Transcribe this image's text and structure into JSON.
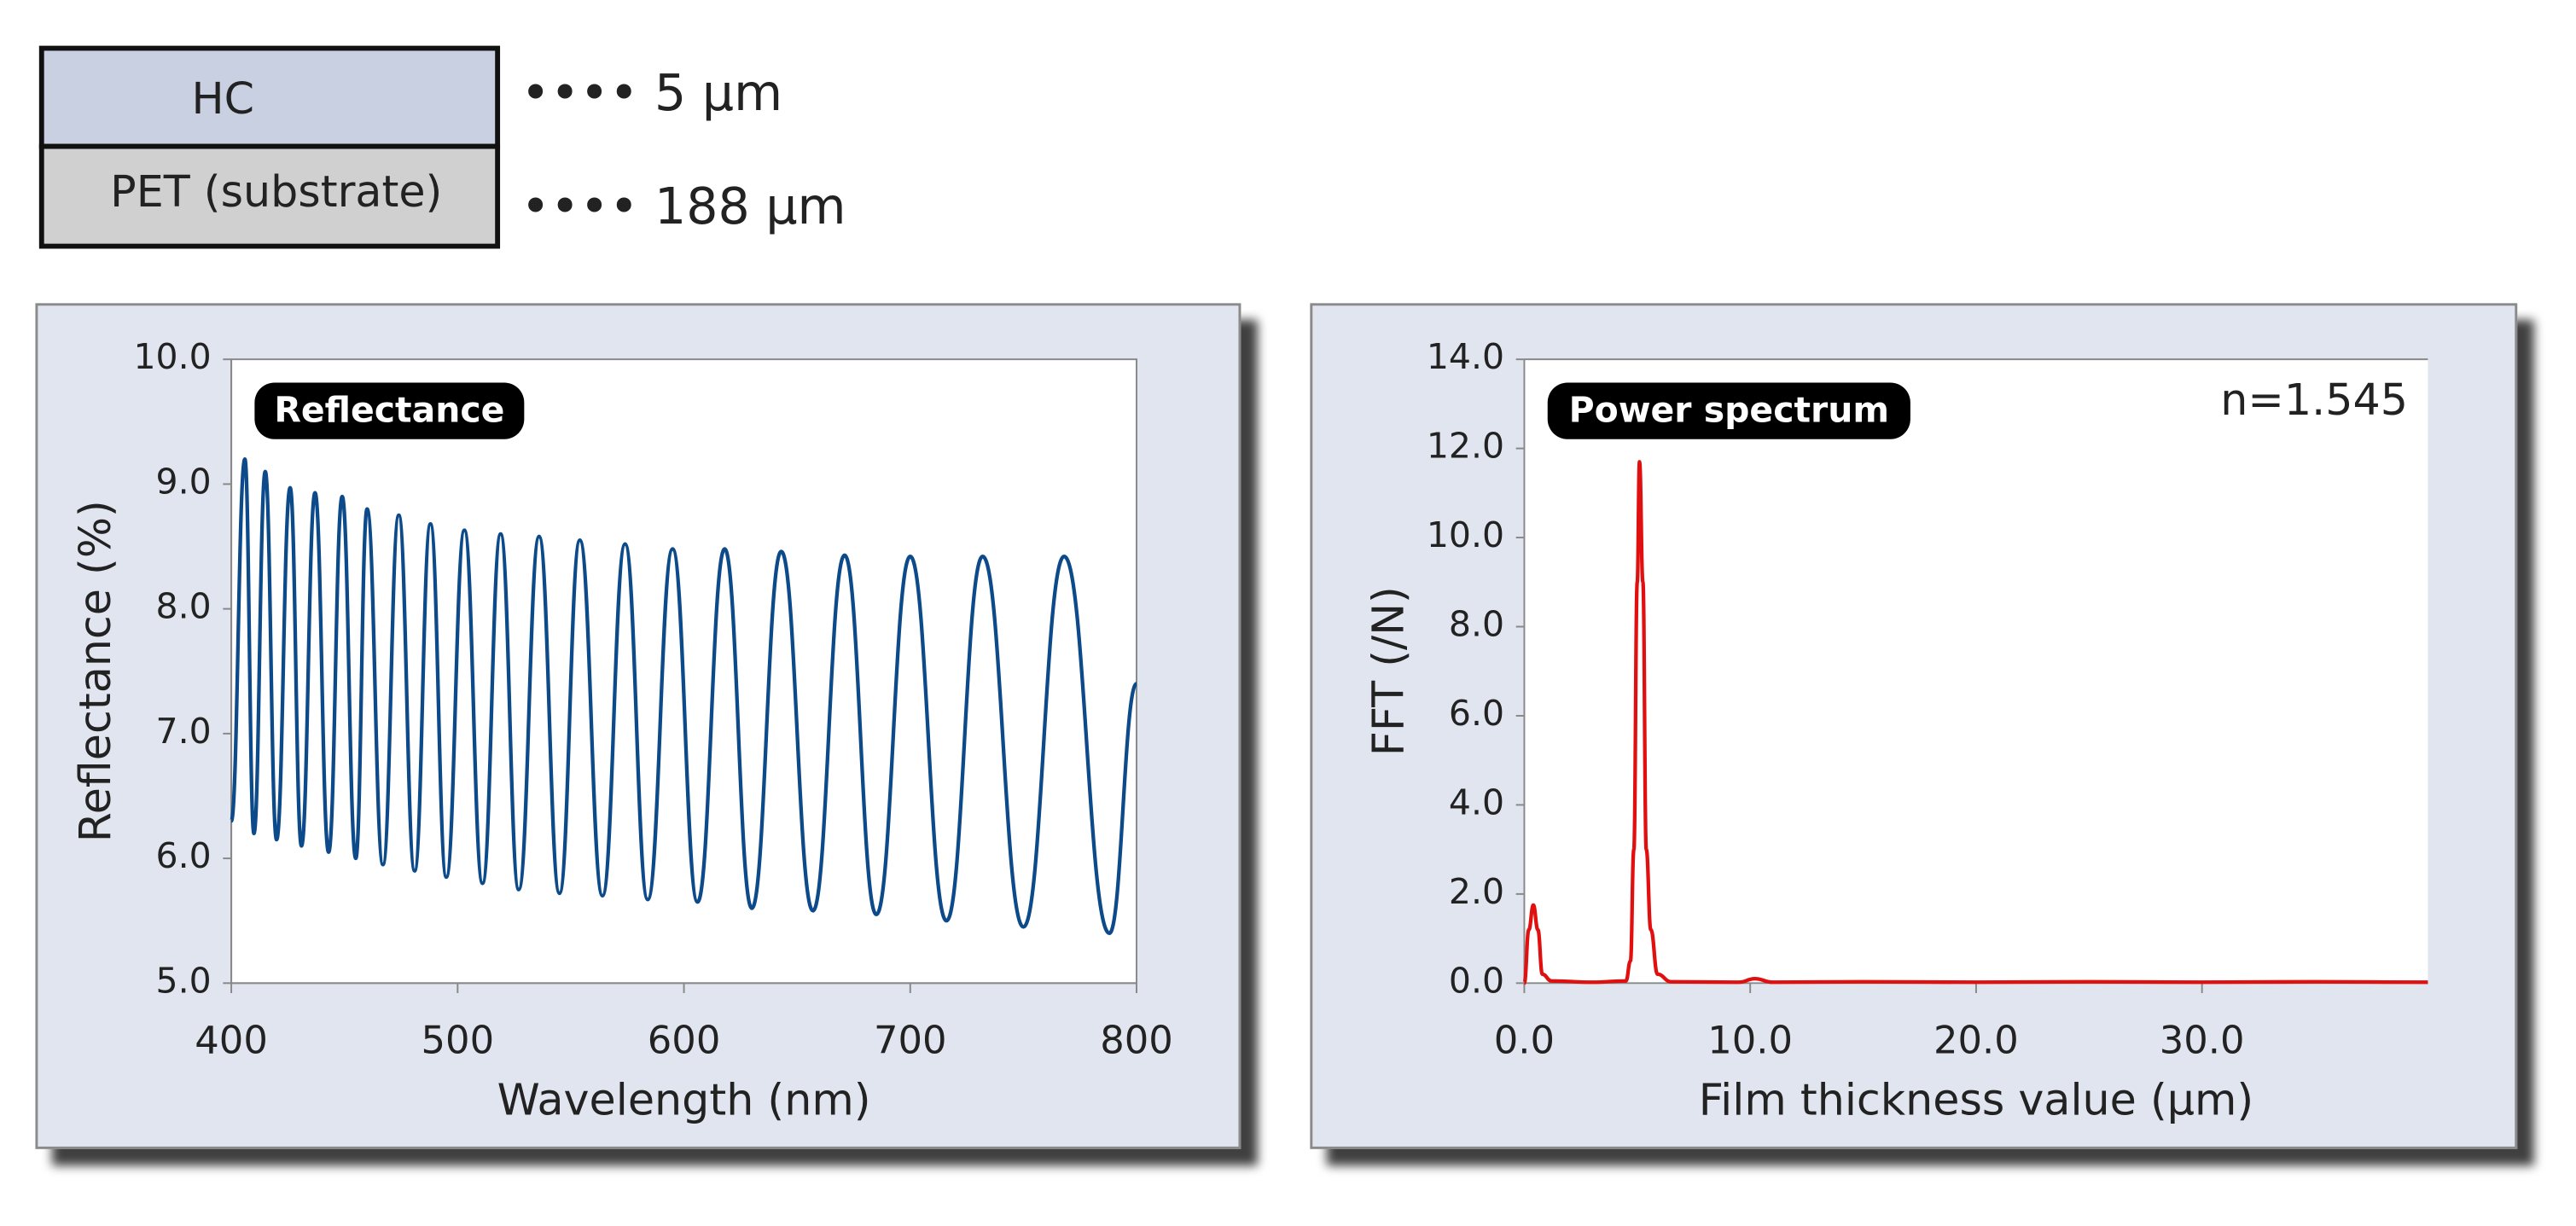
{
  "layers": [
    {
      "label": "HC",
      "thickness": "•••• 5 μm"
    },
    {
      "label": "PET (substrate)",
      "thickness": "•••• 188 μm"
    }
  ],
  "chart_data": [
    {
      "type": "line",
      "title": "Reflectance",
      "x_label": "Wavelength (nm)",
      "y_label": "Reflectance (%)",
      "x": [
        400,
        406,
        410,
        415,
        420,
        426,
        431,
        437,
        443,
        449,
        455,
        460,
        467,
        474,
        481,
        488,
        495,
        503,
        511,
        519,
        527,
        536,
        545,
        554,
        564,
        574,
        584,
        595,
        606,
        618,
        630,
        643,
        657,
        671,
        685,
        700,
        716,
        732,
        750,
        768,
        788,
        800
      ],
      "series": [
        {
          "name": "Reflectance",
          "color": "#0d4a8a",
          "values": [
            6.3,
            9.2,
            6.2,
            9.1,
            6.15,
            8.97,
            6.1,
            8.93,
            6.05,
            8.9,
            6.0,
            8.8,
            5.95,
            8.75,
            5.9,
            8.68,
            5.85,
            8.63,
            5.8,
            8.6,
            5.75,
            8.58,
            5.72,
            8.55,
            5.7,
            8.52,
            5.67,
            8.48,
            5.65,
            8.48,
            5.6,
            8.46,
            5.58,
            8.43,
            5.55,
            8.42,
            5.5,
            8.42,
            5.45,
            8.42,
            5.4,
            7.4
          ]
        }
      ],
      "xlim": [
        400,
        800
      ],
      "xticks": [
        400,
        500,
        600,
        700,
        800
      ],
      "ylim": [
        5,
        10
      ],
      "yticks": [
        {
          "value": 5,
          "label": "5.0"
        },
        {
          "value": 6,
          "label": "6.0"
        },
        {
          "value": 7,
          "label": "7.0"
        },
        {
          "value": 8,
          "label": "8.0"
        },
        {
          "value": 9,
          "label": "9.0"
        },
        {
          "value": 10,
          "label": "10.0"
        }
      ]
    },
    {
      "type": "line",
      "title": "Power spectrum",
      "annotation": "n=1.545",
      "x_label": "Film thickness value (μm)",
      "y_label": "FFT (/N)",
      "x": [
        0,
        0.2,
        0.4,
        0.6,
        0.8,
        1.2,
        3,
        4.5,
        4.7,
        4.85,
        5.0,
        5.1,
        5.25,
        5.4,
        5.6,
        5.9,
        6.5,
        9.5,
        10.2,
        11,
        15,
        20,
        25,
        30,
        35,
        40
      ],
      "series": [
        {
          "name": "Power spectrum",
          "color": "#e01010",
          "values": [
            0,
            1.2,
            1.75,
            1.2,
            0.2,
            0.05,
            0.02,
            0.05,
            0.5,
            3,
            9,
            11.7,
            9,
            3,
            1.2,
            0.2,
            0.03,
            0.02,
            0.1,
            0.02,
            0.03,
            0.02,
            0.03,
            0.02,
            0.03,
            0.02
          ]
        }
      ],
      "xlim": [
        0,
        40
      ],
      "xticks": [
        {
          "value": 0,
          "label": "0.0"
        },
        {
          "value": 10,
          "label": "10.0"
        },
        {
          "value": 20,
          "label": "20.0"
        },
        {
          "value": 30,
          "label": "30.0"
        }
      ],
      "ylim": [
        0,
        14
      ],
      "yticks": [
        {
          "value": 0,
          "label": "0.0"
        },
        {
          "value": 2,
          "label": "2.0"
        },
        {
          "value": 4,
          "label": "4.0"
        },
        {
          "value": 6,
          "label": "6.0"
        },
        {
          "value": 8,
          "label": "8.0"
        },
        {
          "value": 10,
          "label": "10.0"
        },
        {
          "value": 12,
          "label": "12.0"
        },
        {
          "value": 14,
          "label": "14.0"
        }
      ]
    }
  ]
}
